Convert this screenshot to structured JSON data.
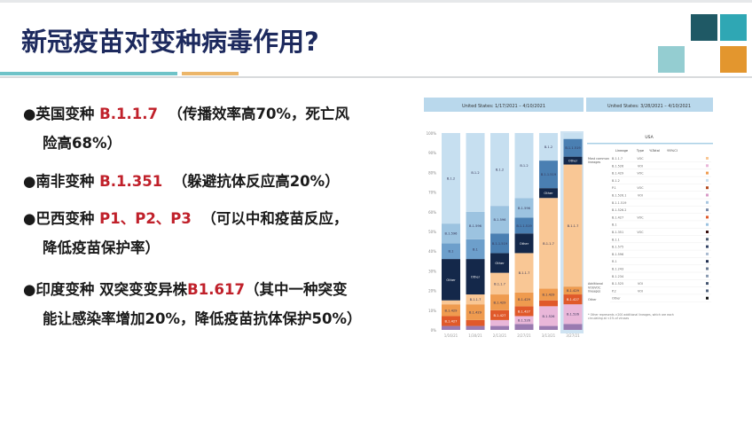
{
  "slide": {
    "title": "新冠疫苗对变种病毒作用?",
    "accent_colors": {
      "navy": "#1d2a5e",
      "teal": "#6fc3c8",
      "orange": "#ecb66a",
      "dark_teal": "#1f5965",
      "mid_teal": "#2fa7b4",
      "light_teal": "#94cdd1",
      "square_orange": "#e3962e",
      "red": "#c0202a"
    }
  },
  "bullets": [
    {
      "prefix": "●英国变种 ",
      "variant": "B.1.1.7",
      "desc": "（传播效率高70%，死亡风",
      "cont": "险高68%）"
    },
    {
      "prefix": "●南非变种 ",
      "variant": "B.1.351",
      "desc": "（躲避抗体反应高20%）"
    },
    {
      "prefix": "●巴西变种 ",
      "variant": "P1、P2、P3",
      "desc": "（可以中和疫苗反应，",
      "cont": "降低疫苗保护率）"
    },
    {
      "prefix": "●印度变种 双突变变异株",
      "variant": "B1.617",
      "desc": "（其中一种突变",
      "cont": "能让感染率增加20%，降低疫苗抗体保护50%）"
    }
  ],
  "figure": {
    "left_header": "United States: 1/17/2021 – 4/10/2021",
    "right_header": "United States: 3/28/2021 – 4/10/2021",
    "y_ticks": [
      "0%",
      "10%",
      "20%",
      "30%",
      "40%",
      "50%",
      "60%",
      "70%",
      "80%",
      "90%",
      "100%"
    ],
    "x_labels": [
      "1/16/21",
      "1/30/21",
      "2/13/21",
      "2/27/21",
      "3/13/21",
      "3/27/21"
    ],
    "lineage_colors": {
      "B.1.2": "#c6dff0",
      "B.1.596": "#9cc3e0",
      "B.1": "#6d9fcb",
      "B.1.1.519": "#4a7fb2",
      "Other": "#14284a",
      "B.1.1.7": "#f9c795",
      "B.1.429": "#ef9b4f",
      "B.1.427": "#e0592a",
      "B.1.526": "#e9b7d9",
      "misc": "#9a7ab0"
    },
    "bars": [
      [
        [
          "misc",
          2
        ],
        [
          "B.1.427",
          5
        ],
        [
          "B.1.429",
          6
        ],
        [
          "B.1.1.7",
          2
        ],
        [
          "Other",
          21
        ],
        [
          "B.1",
          8
        ],
        [
          "B.1.596",
          10
        ],
        [
          "B.1.2",
          46
        ]
      ],
      [
        [
          "misc",
          2
        ],
        [
          "B.1.427",
          3
        ],
        [
          "B.1.429",
          8
        ],
        [
          "B.1.1.7",
          5
        ],
        [
          "Other",
          18
        ],
        [
          "B.1",
          10
        ],
        [
          "B.1.596",
          14
        ],
        [
          "B.1.2",
          40
        ]
      ],
      [
        [
          "misc",
          2
        ],
        [
          "B.1.526",
          3
        ],
        [
          "B.1.427",
          5
        ],
        [
          "B.1.429",
          8
        ],
        [
          "B.1.1.7",
          11
        ],
        [
          "Other",
          10
        ],
        [
          "B.1.1.519",
          10
        ],
        [
          "B.1.596",
          14
        ],
        [
          "B.1.2",
          37
        ]
      ],
      [
        [
          "misc",
          3
        ],
        [
          "B.1.526",
          4
        ],
        [
          "B.1.427",
          5
        ],
        [
          "B.1.429",
          7
        ],
        [
          "B.1.1.7",
          20
        ],
        [
          "Other",
          10
        ],
        [
          "B.1.1.519",
          8
        ],
        [
          "B.1.596",
          10
        ],
        [
          "B.1.2",
          33
        ]
      ],
      [
        [
          "misc",
          2
        ],
        [
          "B.1.526",
          10
        ],
        [
          "B.1.427",
          3
        ],
        [
          "B.1.429",
          6
        ],
        [
          "B.1.1.7",
          46
        ],
        [
          "Other",
          5
        ],
        [
          "B.1.1.519",
          14
        ],
        [
          "B.1.2",
          14
        ]
      ],
      [
        [
          "misc",
          3
        ],
        [
          "B.1.526",
          10
        ],
        [
          "B.1.427",
          5
        ],
        [
          "B.1.429",
          4
        ],
        [
          "B.1.1.7",
          62
        ],
        [
          "Other",
          4
        ],
        [
          "B.1.1.519",
          9
        ],
        [
          "B.1.2",
          3
        ]
      ]
    ],
    "table": {
      "region": "USA",
      "columns": [
        "Lineage",
        "Type",
        "%Total",
        "95%CI"
      ],
      "groups": [
        "Most common lineages",
        "Additional VOI/VOC lineages",
        "Other"
      ],
      "rows": [
        [
          "B.1.1.7",
          "VOC",
          "B.1.1.7"
        ],
        [
          "B.1.526",
          "VOI",
          "B.1.526"
        ],
        [
          "B.1.429",
          "VOC",
          "B.1.429"
        ],
        [
          "B.1.2",
          "",
          "B.1.2"
        ],
        [
          "P.1",
          "VOC",
          "P.1"
        ],
        [
          "B.1.526.1",
          "VOI",
          "B.1.526.1"
        ],
        [
          "B.1.1.519",
          "",
          "B.1.1.519"
        ],
        [
          "B.1.526.2",
          "",
          "B.1.526.2"
        ],
        [
          "B.1.427",
          "VOC",
          "B.1.427"
        ],
        [
          "B.1",
          "",
          "B.1"
        ],
        [
          "B.1.351",
          "VOC",
          "B.1.351"
        ],
        [
          "B.1.1",
          "",
          "B.1.1"
        ],
        [
          "B.1.575",
          "",
          "B.1.575"
        ],
        [
          "B.1.596",
          "",
          "B.1.596"
        ],
        [
          "R.1",
          "",
          "R.1"
        ],
        [
          "B.1.243",
          "",
          "B.1.243"
        ],
        [
          "B.1.234",
          "",
          "B.1.234"
        ],
        [
          "B.1.525",
          "VOI",
          "B.1.525"
        ],
        [
          "P.2",
          "VOI",
          "P.2"
        ],
        [
          "Other",
          "",
          "Other"
        ]
      ],
      "footnote": "* Other represents >200 additional lineages, which are each circulating at <1% of viruses"
    }
  }
}
